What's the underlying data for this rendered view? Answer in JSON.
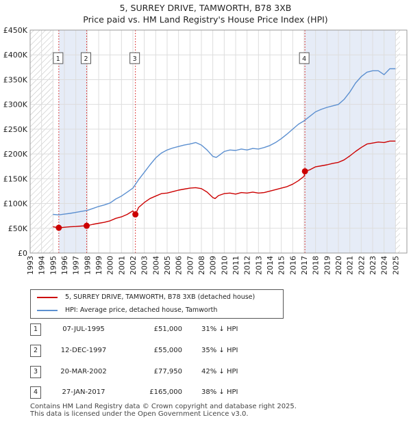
{
  "chart_data": {
    "type": "line",
    "title": "5, SURREY DRIVE, TAMWORTH, B78 3XB",
    "subtitle": "Price paid vs. HM Land Registry's House Price Index (HPI)",
    "xlim": [
      1993,
      2025
    ],
    "ylim": [
      0,
      450000
    ],
    "y_ticks": [
      {
        "value": 0,
        "label": "£0"
      },
      {
        "value": 50000,
        "label": "£50K"
      },
      {
        "value": 100000,
        "label": "£100K"
      },
      {
        "value": 150000,
        "label": "£150K"
      },
      {
        "value": 200000,
        "label": "£200K"
      },
      {
        "value": 250000,
        "label": "£250K"
      },
      {
        "value": 300000,
        "label": "£300K"
      },
      {
        "value": 350000,
        "label": "£350K"
      },
      {
        "value": 400000,
        "label": "£400K"
      },
      {
        "value": 450000,
        "label": "£450K"
      }
    ],
    "x_ticks": [
      "1993",
      "1994",
      "1995",
      "1996",
      "1997",
      "1998",
      "1999",
      "2000",
      "2001",
      "2002",
      "2003",
      "2004",
      "2005",
      "2006",
      "2007",
      "2008",
      "2009",
      "2010",
      "2011",
      "2012",
      "2013",
      "2014",
      "2015",
      "2016",
      "2017",
      "2018",
      "2019",
      "2020",
      "2021",
      "2022",
      "2023",
      "2024",
      "2025"
    ],
    "grid": true,
    "hatched_ranges": [
      [
        1993,
        1995.0
      ],
      [
        2025.0,
        2025.4
      ]
    ],
    "shaded_ranges": [
      [
        1995.51,
        1997.95
      ],
      [
        2017.07,
        2025.0
      ]
    ],
    "series": [
      {
        "name": "5, SURREY DRIVE, TAMWORTH, B78 3XB (detached house)",
        "color": "#cc0000",
        "x": [
          1995.0,
          1995.51,
          1996.0,
          1996.5,
          1997.0,
          1997.5,
          1997.95,
          1998.5,
          1999.0,
          1999.5,
          2000.0,
          2000.5,
          2001.0,
          2001.5,
          2002.0,
          2002.22,
          2002.5,
          2003.0,
          2003.5,
          2004.0,
          2004.5,
          2005.0,
          2005.5,
          2006.0,
          2006.5,
          2007.0,
          2007.5,
          2008.0,
          2008.5,
          2009.0,
          2009.2,
          2009.5,
          2010.0,
          2010.5,
          2011.0,
          2011.5,
          2012.0,
          2012.5,
          2013.0,
          2013.5,
          2014.0,
          2014.5,
          2015.0,
          2015.5,
          2016.0,
          2016.5,
          2017.0,
          2017.07,
          2017.5,
          2018.0,
          2018.5,
          2019.0,
          2019.5,
          2020.0,
          2020.5,
          2021.0,
          2021.5,
          2022.0,
          2022.5,
          2023.0,
          2023.5,
          2024.0,
          2024.5,
          2025.0
        ],
        "values": [
          53000,
          51000,
          52000,
          53000,
          53500,
          54500,
          55000,
          58000,
          60000,
          62000,
          65000,
          70000,
          73000,
          78000,
          85000,
          77950,
          92000,
          102000,
          110000,
          115000,
          120000,
          121000,
          124000,
          127000,
          129000,
          131000,
          132000,
          130000,
          123000,
          112000,
          110000,
          116000,
          120000,
          121000,
          119000,
          122000,
          121000,
          123000,
          121000,
          122000,
          125000,
          128000,
          131000,
          134000,
          139000,
          146000,
          155000,
          165000,
          168000,
          174000,
          176000,
          178000,
          181000,
          183000,
          188000,
          196000,
          205000,
          213000,
          220000,
          222000,
          224000,
          223000,
          226000,
          226000
        ]
      },
      {
        "name": "HPI: Average price, detached house, Tamworth",
        "color": "#5b8fd0",
        "x": [
          1995.0,
          1995.5,
          1996.0,
          1996.5,
          1997.0,
          1997.5,
          1998.0,
          1998.5,
          1999.0,
          1999.5,
          2000.0,
          2000.5,
          2001.0,
          2001.5,
          2002.0,
          2002.5,
          2003.0,
          2003.5,
          2004.0,
          2004.5,
          2005.0,
          2005.5,
          2006.0,
          2006.5,
          2007.0,
          2007.5,
          2008.0,
          2008.5,
          2009.0,
          2009.3,
          2009.6,
          2010.0,
          2010.5,
          2011.0,
          2011.5,
          2012.0,
          2012.5,
          2013.0,
          2013.5,
          2014.0,
          2014.5,
          2015.0,
          2015.5,
          2016.0,
          2016.5,
          2017.0,
          2017.5,
          2018.0,
          2018.5,
          2019.0,
          2019.5,
          2020.0,
          2020.5,
          2021.0,
          2021.5,
          2022.0,
          2022.5,
          2023.0,
          2023.5,
          2024.0,
          2024.5,
          2025.0
        ],
        "values": [
          78000,
          77000,
          78500,
          80000,
          82000,
          84000,
          86000,
          90000,
          94000,
          97000,
          101000,
          109000,
          115000,
          123000,
          131000,
          148000,
          163000,
          178000,
          192000,
          202000,
          208000,
          212000,
          215000,
          218000,
          220000,
          223000,
          218000,
          208000,
          195000,
          193000,
          198000,
          205000,
          208000,
          207000,
          210000,
          208000,
          211000,
          210000,
          213000,
          217000,
          223000,
          231000,
          240000,
          250000,
          260000,
          267000,
          276000,
          285000,
          290000,
          294000,
          297000,
          300000,
          310000,
          325000,
          343000,
          356000,
          365000,
          368000,
          368000,
          360000,
          372000,
          372000
        ]
      }
    ],
    "sales": [
      {
        "label": "1",
        "x": 1995.51,
        "value": 51000
      },
      {
        "label": "2",
        "x": 1997.95,
        "value": 55000
      },
      {
        "label": "3",
        "x": 2002.22,
        "value": 77950
      },
      {
        "label": "4",
        "x": 2017.07,
        "value": 165000
      }
    ]
  },
  "legend": {
    "property_label": "5, SURREY DRIVE, TAMWORTH, B78 3XB (detached house)",
    "hpi_label": "HPI: Average price, detached house, Tamworth",
    "property_color": "#cc0000",
    "hpi_color": "#5b8fd0"
  },
  "transactions": [
    {
      "num": "1",
      "date": "07-JUL-1995",
      "price": "£51,000",
      "pct": "31% ↓ HPI"
    },
    {
      "num": "2",
      "date": "12-DEC-1997",
      "price": "£55,000",
      "pct": "35% ↓ HPI"
    },
    {
      "num": "3",
      "date": "20-MAR-2002",
      "price": "£77,950",
      "pct": "42% ↓ HPI"
    },
    {
      "num": "4",
      "date": "27-JAN-2017",
      "price": "£165,000",
      "pct": "38% ↓ HPI"
    }
  ],
  "footer": {
    "line1": "Contains HM Land Registry data © Crown copyright and database right 2025.",
    "line2": "This data is licensed under the Open Government Licence v3.0."
  }
}
